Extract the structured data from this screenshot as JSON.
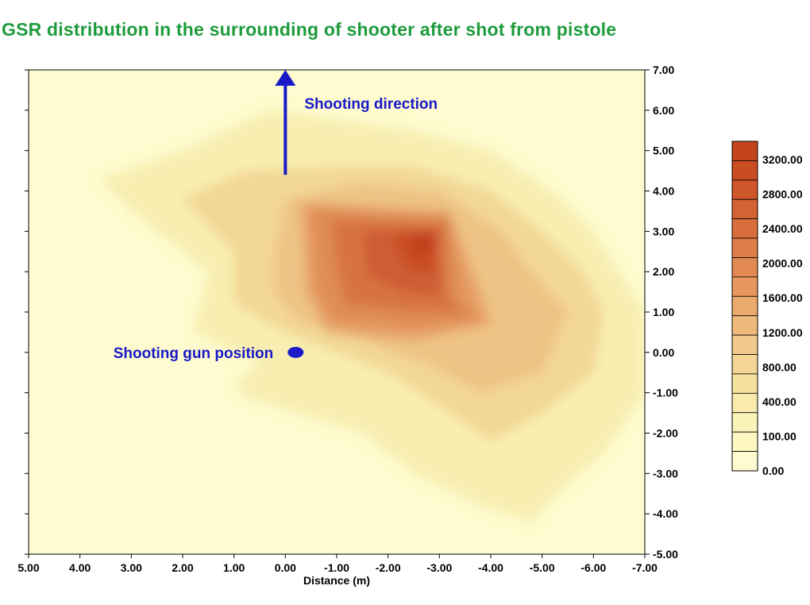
{
  "chart_data": {
    "type": "heatmap",
    "subtype": "filled contour map",
    "title": "GSR distribution in the surrounding of shooter after shot from pistole",
    "xlabel": "Distance (m)",
    "ylabel": "",
    "xlim": [
      5,
      -7
    ],
    "ylim": [
      -5,
      7
    ],
    "x_axis_reversed": true,
    "x_ticks": [
      "5.00",
      "4.00",
      "3.00",
      "2.00",
      "1.00",
      "0.00",
      "-1.00",
      "-2.00",
      "-3.00",
      "-4.00",
      "-5.00",
      "-6.00",
      "-7.00"
    ],
    "y_ticks": [
      "7.00",
      "6.00",
      "5.00",
      "4.00",
      "3.00",
      "2.00",
      "1.00",
      "0.00",
      "-1.00",
      "-2.00",
      "-3.00",
      "-4.00",
      "-5.00"
    ],
    "y_axis_position": "right",
    "peak": {
      "x": -2.7,
      "y": 2.7,
      "approx_value": 3300
    },
    "contour_regions": [
      {
        "level": 100,
        "polygon": [
          [
            3.6,
            4.3
          ],
          [
            2.0,
            5.0
          ],
          [
            0.3,
            6.0
          ],
          [
            -2.5,
            5.5
          ],
          [
            -4.0,
            5.0
          ],
          [
            -5.2,
            4.0
          ],
          [
            -6.0,
            3.0
          ],
          [
            -6.5,
            2.0
          ],
          [
            -7.0,
            1.0
          ],
          [
            -7.0,
            -1.0
          ],
          [
            -6.2,
            -2.5
          ],
          [
            -5.2,
            -3.6
          ],
          [
            -4.8,
            -4.2
          ],
          [
            -3.8,
            -3.8
          ],
          [
            -2.5,
            -3.0
          ],
          [
            -1.5,
            -2.0
          ],
          [
            0.8,
            -1.1
          ],
          [
            1.0,
            -0.8
          ],
          [
            0.5,
            -0.3
          ],
          [
            1.8,
            0.5
          ],
          [
            1.5,
            2.0
          ],
          [
            3.0,
            3.5
          ]
        ]
      },
      {
        "level": 400,
        "polygon": [
          [
            2.0,
            3.8
          ],
          [
            0.8,
            4.5
          ],
          [
            -1.0,
            4.6
          ],
          [
            -2.5,
            4.6
          ],
          [
            -4.0,
            4.0
          ],
          [
            -5.0,
            3.0
          ],
          [
            -5.8,
            2.0
          ],
          [
            -6.2,
            1.0
          ],
          [
            -6.0,
            -0.5
          ],
          [
            -5.0,
            -1.5
          ],
          [
            -4.0,
            -2.2
          ],
          [
            -3.2,
            -1.5
          ],
          [
            -2.0,
            -0.5
          ],
          [
            -1.0,
            0.0
          ],
          [
            0.0,
            0.5
          ],
          [
            1.0,
            1.2
          ],
          [
            1.0,
            2.5
          ]
        ]
      },
      {
        "level": 800,
        "polygon": [
          [
            0.0,
            3.8
          ],
          [
            -1.5,
            4.2
          ],
          [
            -3.0,
            4.0
          ],
          [
            -4.2,
            3.0
          ],
          [
            -4.8,
            2.0
          ],
          [
            -5.5,
            1.0
          ],
          [
            -5.0,
            -0.5
          ],
          [
            -3.8,
            -1.0
          ],
          [
            -2.8,
            -0.3
          ],
          [
            -1.5,
            0.3
          ],
          [
            -0.2,
            0.8
          ],
          [
            0.2,
            1.5
          ],
          [
            0.2,
            2.5
          ]
        ]
      },
      {
        "level": 1200,
        "polygon": [
          [
            -0.3,
            3.7
          ],
          [
            -3.2,
            3.5
          ],
          [
            -3.8,
            1.5
          ],
          [
            -4.0,
            0.7
          ],
          [
            -2.5,
            0.3
          ],
          [
            -0.8,
            0.5
          ],
          [
            -0.4,
            1.5
          ]
        ]
      },
      {
        "level": 1600,
        "polygon": [
          [
            -0.5,
            3.6
          ],
          [
            -3.2,
            3.4
          ],
          [
            -3.5,
            1.3
          ],
          [
            -3.8,
            0.8
          ],
          [
            -2.6,
            0.6
          ],
          [
            -0.9,
            0.8
          ],
          [
            -0.6,
            1.6
          ]
        ]
      },
      {
        "level": 2000,
        "polygon": [
          [
            -0.9,
            3.3
          ],
          [
            -3.1,
            3.2
          ],
          [
            -3.2,
            1.3
          ],
          [
            -3.5,
            1.0
          ],
          [
            -2.4,
            1.0
          ],
          [
            -1.2,
            1.2
          ],
          [
            -1.0,
            2.0
          ]
        ]
      },
      {
        "level": 2400,
        "polygon": [
          [
            -1.5,
            3.0
          ],
          [
            -3.0,
            3.1
          ],
          [
            -3.0,
            1.5
          ],
          [
            -3.2,
            1.4
          ],
          [
            -2.3,
            1.5
          ],
          [
            -1.6,
            1.9
          ]
        ]
      },
      {
        "level": 2800,
        "polygon": [
          [
            -2.1,
            2.9
          ],
          [
            -2.9,
            3.0
          ],
          [
            -2.9,
            2.0
          ],
          [
            -2.4,
            2.1
          ]
        ]
      },
      {
        "level": 3200,
        "polygon": [
          [
            -2.45,
            2.85
          ],
          [
            -2.9,
            2.95
          ],
          [
            -2.85,
            2.4
          ],
          [
            -2.55,
            2.45
          ]
        ]
      }
    ],
    "legend": {
      "placement": "right",
      "labels": [
        "3200.00",
        "2800.00",
        "2400.00",
        "2000.00",
        "1600.00",
        "1200.00",
        "800.00",
        "400.00",
        "100.00",
        "0.00"
      ],
      "swatch_colors": [
        "#c3441c",
        "#c94d23",
        "#cf562a",
        "#d46233",
        "#d96e3c",
        "#de7c47",
        "#e38a52",
        "#e7985e",
        "#ebaa6c",
        "#eeba7b",
        "#f1c98a",
        "#f4d797",
        "#f6e29f",
        "#f8ebac",
        "#faf2b6",
        "#fdf8c2",
        "#fffbd0"
      ]
    },
    "annotations": [
      {
        "text": "Shooting direction",
        "kind": "label with arrow",
        "arrow_from": [
          0.0,
          4.4
        ],
        "arrow_to": [
          0.0,
          7.0
        ]
      },
      {
        "text": "Shooting gun position",
        "kind": "label with marker",
        "marker": [
          -0.2,
          0.0
        ]
      }
    ],
    "colors": {
      "background": "#fdfbcf",
      "title": "#1e9b3c",
      "annotation": "#1a1ac8",
      "level_colors": {
        "0": "#fdfbcf",
        "100": "#f8eeb0",
        "400": "#f3d795",
        "800": "#eec385",
        "1200": "#e6a066",
        "1600": "#df8d55",
        "2000": "#d77343",
        "2400": "#cf5c31",
        "2800": "#c84b24",
        "3200": "#c0401b"
      }
    }
  }
}
